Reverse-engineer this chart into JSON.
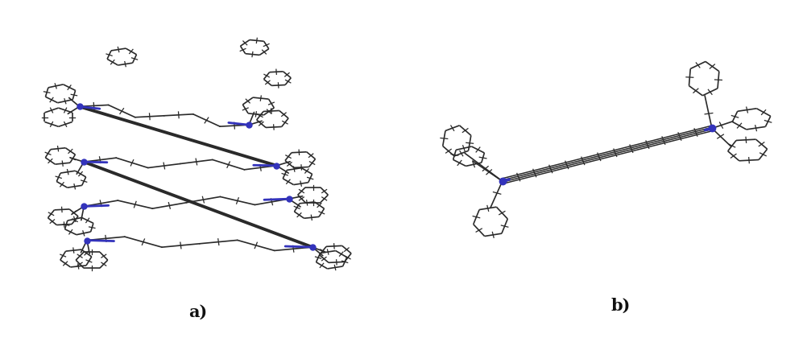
{
  "label_a": "a)",
  "label_b": "b)",
  "label_fontsize": 15,
  "label_fontweight": "bold",
  "background_color": "#ffffff",
  "bond_color": "#2a2a2a",
  "nitrogen_color": "#3333bb",
  "bond_lw": 1.2,
  "thick_lw": 2.8,
  "nitrogen_lw": 2.0,
  "figwidth": 10.02,
  "figheight": 4.2,
  "dpi": 100
}
